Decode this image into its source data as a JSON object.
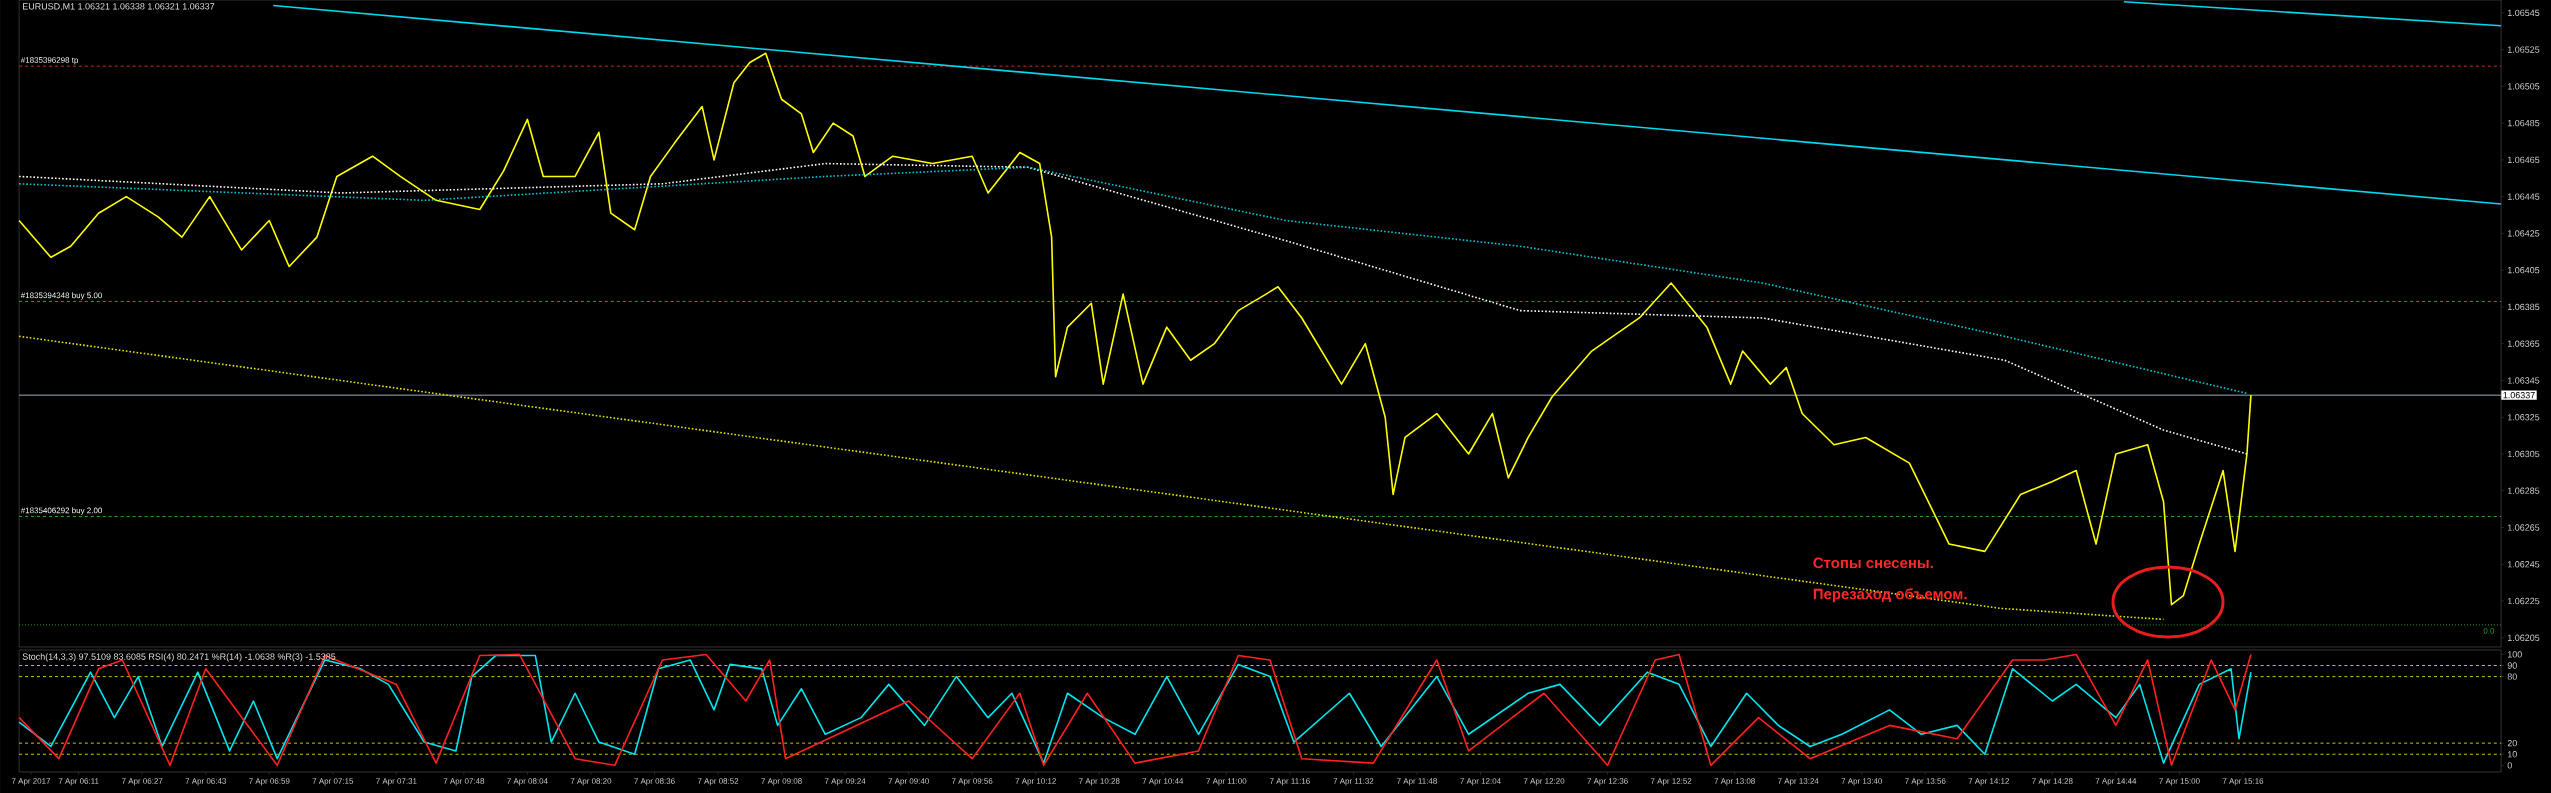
{
  "chart_data": [
    {
      "type": "line",
      "title": "EURUSD,M1  1.06321 1.06338 1.06321 1.06337",
      "xlim": [
        "2017-04-07T05:56",
        "2017-04-07T16:21"
      ],
      "ylim": [
        1.062,
        1.06552
      ],
      "yticks": [
        1.06205,
        1.06225,
        1.06245,
        1.06265,
        1.06285,
        1.06305,
        1.06325,
        1.06345,
        1.06365,
        1.06385,
        1.06405,
        1.06425,
        1.06445,
        1.06465,
        1.06485,
        1.06505,
        1.06525,
        1.06545
      ],
      "tick_labels": "y",
      "series": [
        {
          "color": "#ffff00",
          "line_style": "solid",
          "x": [
            "2017-04-07T05:56",
            "2017-04-07T06:04",
            "2017-04-07T06:09",
            "2017-04-07T06:16",
            "2017-04-07T06:23",
            "2017-04-07T06:31",
            "2017-04-07T06:37",
            "2017-04-07T06:44",
            "2017-04-07T06:52",
            "2017-04-07T06:59",
            "2017-04-07T07:04",
            "2017-04-07T07:11",
            "2017-04-07T07:16",
            "2017-04-07T07:25",
            "2017-04-07T07:32",
            "2017-04-07T07:41",
            "2017-04-07T07:52",
            "2017-04-07T07:58",
            "2017-04-07T08:04",
            "2017-04-07T08:08",
            "2017-04-07T08:16",
            "2017-04-07T08:22",
            "2017-04-07T08:25",
            "2017-04-07T08:31",
            "2017-04-07T08:35",
            "2017-04-07T08:41",
            "2017-04-07T08:48",
            "2017-04-07T08:51",
            "2017-04-07T08:56",
            "2017-04-07T09:00",
            "2017-04-07T09:04",
            "2017-04-07T09:08",
            "2017-04-07T09:13",
            "2017-04-07T09:16",
            "2017-04-07T09:21",
            "2017-04-07T09:26",
            "2017-04-07T09:29",
            "2017-04-07T09:36",
            "2017-04-07T09:46",
            "2017-04-07T09:56",
            "2017-04-07T10:00",
            "2017-04-07T10:08",
            "2017-04-07T10:13",
            "2017-04-07T10:16",
            "2017-04-07T10:17",
            "2017-04-07T10:20",
            "2017-04-07T10:26",
            "2017-04-07T10:29",
            "2017-04-07T10:34",
            "2017-04-07T10:39",
            "2017-04-07T10:45",
            "2017-04-07T10:51",
            "2017-04-07T10:57",
            "2017-04-07T11:03",
            "2017-04-07T11:10",
            "2017-04-07T11:13",
            "2017-04-07T11:19",
            "2017-04-07T11:29",
            "2017-04-07T11:35",
            "2017-04-07T11:40",
            "2017-04-07T11:42",
            "2017-04-07T11:45",
            "2017-04-07T11:53",
            "2017-04-07T12:01",
            "2017-04-07T12:07",
            "2017-04-07T12:11",
            "2017-04-07T12:16",
            "2017-04-07T12:22",
            "2017-04-07T12:32",
            "2017-04-07T12:44",
            "2017-04-07T12:52",
            "2017-04-07T13:01",
            "2017-04-07T13:07",
            "2017-04-07T13:10",
            "2017-04-07T13:17",
            "2017-04-07T13:21",
            "2017-04-07T13:25",
            "2017-04-07T13:33",
            "2017-04-07T13:41",
            "2017-04-07T13:52",
            "2017-04-07T14:02",
            "2017-04-07T14:11",
            "2017-04-07T14:20",
            "2017-04-07T14:28",
            "2017-04-07T14:34",
            "2017-04-07T14:39",
            "2017-04-07T14:44",
            "2017-04-07T14:52",
            "2017-04-07T14:56",
            "2017-04-07T14:58",
            "2017-04-07T15:01",
            "2017-04-07T15:05",
            "2017-04-07T15:11",
            "2017-04-07T15:14",
            "2017-04-07T15:17",
            "2017-04-07T15:18"
          ],
          "values": [
            1.06432,
            1.06412,
            1.06418,
            1.06436,
            1.06445,
            1.06434,
            1.06423,
            1.06445,
            1.06416,
            1.06432,
            1.06407,
            1.06423,
            1.06456,
            1.06467,
            1.06456,
            1.06443,
            1.06438,
            1.06459,
            1.06487,
            1.06456,
            1.06456,
            1.0648,
            1.06436,
            1.06427,
            1.06456,
            1.06474,
            1.06494,
            1.06465,
            1.06507,
            1.06518,
            1.06523,
            1.06498,
            1.0649,
            1.06469,
            1.06485,
            1.06478,
            1.06456,
            1.06467,
            1.06463,
            1.06467,
            1.06447,
            1.06469,
            1.06463,
            1.06423,
            1.06347,
            1.06374,
            1.06387,
            1.06343,
            1.06392,
            1.06343,
            1.06374,
            1.06356,
            1.06365,
            1.06383,
            1.06392,
            1.06396,
            1.06379,
            1.06343,
            1.06365,
            1.06325,
            1.06283,
            1.06314,
            1.06327,
            1.06305,
            1.06327,
            1.06292,
            1.06314,
            1.06336,
            1.06361,
            1.06379,
            1.06398,
            1.06374,
            1.06343,
            1.06361,
            1.06343,
            1.06352,
            1.06327,
            1.0631,
            1.06314,
            1.063,
            1.06256,
            1.06252,
            1.06283,
            1.0629,
            1.06296,
            1.06256,
            1.06305,
            1.0631,
            1.06279,
            1.06223,
            1.06228,
            1.06256,
            1.06296,
            1.06252,
            1.06305,
            1.06337
          ]
        },
        {
          "color": "#00d8f0",
          "line_style": "solid",
          "x": [
            "2017-04-07T07:00",
            "2017-04-07T16:21"
          ],
          "values": [
            1.06549,
            1.06441
          ]
        },
        {
          "color": "#00d8f0",
          "line_style": "solid",
          "x": [
            "2017-04-07T14:46",
            "2017-04-07T16:21"
          ],
          "values": [
            1.06551,
            1.06538
          ]
        },
        {
          "color": "#e6e600",
          "line_style": "dotted",
          "x": [
            "2017-04-07T05:56",
            "2017-04-07T14:15",
            "2017-04-07T14:56"
          ],
          "values": [
            1.06369,
            1.06221,
            1.06215
          ]
        },
        {
          "color": "#ffffff",
          "line_style": "dotted",
          "x": [
            "2017-04-07T05:56",
            "2017-04-07T07:17",
            "2017-04-07T08:38",
            "2017-04-07T09:19",
            "2017-04-07T10:10",
            "2017-04-07T11:15",
            "2017-04-07T12:14",
            "2017-04-07T13:15",
            "2017-04-07T14:16",
            "2017-04-07T14:56",
            "2017-04-07T15:17"
          ],
          "values": [
            1.06456,
            1.06447,
            1.06452,
            1.06463,
            1.06461,
            1.06421,
            1.06383,
            1.06379,
            1.06356,
            1.06318,
            1.06305
          ]
        },
        {
          "color": "#00c8d8",
          "line_style": "dotted",
          "x": [
            "2017-04-07T05:56",
            "2017-04-07T07:38",
            "2017-04-07T09:19",
            "2017-04-07T10:10",
            "2017-04-07T11:15",
            "2017-04-07T12:14",
            "2017-04-07T13:15",
            "2017-04-07T14:16",
            "2017-04-07T15:17"
          ],
          "values": [
            1.06452,
            1.06443,
            1.06456,
            1.06461,
            1.06432,
            1.06418,
            1.06398,
            1.06369,
            1.06338
          ]
        }
      ],
      "ref_lines": [
        {
          "axis": "y",
          "value": 1.06516,
          "label": "#1835396298 tp",
          "color": "#c8321e",
          "line_style": "dashed"
        },
        {
          "axis": "y",
          "value": 1.06388,
          "label": "#1835394348 buy 5.00",
          "color": "#2ea02e",
          "line_style": "dashed"
        },
        {
          "axis": "y",
          "value": 1.06271,
          "label": "#1835406292 buy 2.00",
          "color": "#2ea02e",
          "line_style": "dashed"
        },
        {
          "axis": "y",
          "value": 1.06337,
          "label": "1.06337",
          "color": "#a0a8b8",
          "line_style": "solid"
        },
        {
          "axis": "y",
          "value": 1.06212,
          "color": "#2ea02e",
          "line_style": "dotted"
        }
      ],
      "annotations": [
        "Стопы снесены.",
        "Перезаход объемом.",
        "0.0"
      ]
    },
    {
      "type": "line",
      "title": "Stoch(14,3,3) 97.5109 83.6085  RSI(4) 80.2471  %R(14) -1.0638  %R(3) -1.5385",
      "xlim": [
        "2017-04-07T05:56",
        "2017-04-07T16:21"
      ],
      "ylim": [
        -6,
        104
      ],
      "xticks": [
        {
          "value": "2017-04-07T05:59",
          "label": "7 Apr 2017"
        },
        {
          "value": "2017-04-07T06:11",
          "label": "7 Apr 06:11"
        },
        {
          "value": "2017-04-07T06:27",
          "label": "7 Apr 06:27"
        },
        {
          "value": "2017-04-07T06:43",
          "label": "7 Apr 06:43"
        },
        {
          "value": "2017-04-07T06:59",
          "label": "7 Apr 06:59"
        },
        {
          "value": "2017-04-07T07:15",
          "label": "7 Apr 07:15"
        },
        {
          "value": "2017-04-07T07:31",
          "label": "7 Apr 07:31"
        },
        {
          "value": "2017-04-07T07:48",
          "label": "7 Apr 07:48"
        },
        {
          "value": "2017-04-07T08:04",
          "label": "7 Apr 08:04"
        },
        {
          "value": "2017-04-07T08:20",
          "label": "7 Apr 08:20"
        },
        {
          "value": "2017-04-07T08:36",
          "label": "7 Apr 08:36"
        },
        {
          "value": "2017-04-07T08:52",
          "label": "7 Apr 08:52"
        },
        {
          "value": "2017-04-07T09:08",
          "label": "7 Apr 09:08"
        },
        {
          "value": "2017-04-07T09:24",
          "label": "7 Apr 09:24"
        },
        {
          "value": "2017-04-07T09:40",
          "label": "7 Apr 09:40"
        },
        {
          "value": "2017-04-07T09:56",
          "label": "7 Apr 09:56"
        },
        {
          "value": "2017-04-07T10:12",
          "label": "7 Apr 10:12"
        },
        {
          "value": "2017-04-07T10:28",
          "label": "7 Apr 10:28"
        },
        {
          "value": "2017-04-07T10:44",
          "label": "7 Apr 10:44"
        },
        {
          "value": "2017-04-07T11:00",
          "label": "7 Apr 11:00"
        },
        {
          "value": "2017-04-07T11:16",
          "label": "7 Apr 11:16"
        },
        {
          "value": "2017-04-07T11:32",
          "label": "7 Apr 11:32"
        },
        {
          "value": "2017-04-07T11:48",
          "label": "7 Apr 11:48"
        },
        {
          "value": "2017-04-07T12:04",
          "label": "7 Apr 12:04"
        },
        {
          "value": "2017-04-07T12:20",
          "label": "7 Apr 12:20"
        },
        {
          "value": "2017-04-07T12:36",
          "label": "7 Apr 12:36"
        },
        {
          "value": "2017-04-07T12:52",
          "label": "7 Apr 12:52"
        },
        {
          "value": "2017-04-07T13:08",
          "label": "7 Apr 13:08"
        },
        {
          "value": "2017-04-07T13:24",
          "label": "7 Apr 13:24"
        },
        {
          "value": "2017-04-07T13:40",
          "label": "7 Apr 13:40"
        },
        {
          "value": "2017-04-07T13:56",
          "label": "7 Apr 13:56"
        },
        {
          "value": "2017-04-07T14:12",
          "label": "7 Apr 14:12"
        },
        {
          "value": "2017-04-07T14:28",
          "label": "7 Apr 14:28"
        },
        {
          "value": "2017-04-07T14:44",
          "label": "7 Apr 14:44"
        },
        {
          "value": "2017-04-07T15:00",
          "label": "7 Apr 15:00"
        },
        {
          "value": "2017-04-07T15:16",
          "label": "7 Apr 15:16"
        }
      ],
      "yticks": [
        0,
        10,
        20,
        80,
        90,
        100
      ],
      "series": [
        {
          "color": "#00e5ee",
          "line_style": "solid",
          "x": [
            "2017-04-07T05:56",
            "2017-04-07T06:04",
            "2017-04-07T06:14",
            "2017-04-07T06:20",
            "2017-04-07T06:26",
            "2017-04-07T06:32",
            "2017-04-07T06:41",
            "2017-04-07T06:49",
            "2017-04-07T06:55",
            "2017-04-07T07:01",
            "2017-04-07T07:13",
            "2017-04-07T07:22",
            "2017-04-07T07:29",
            "2017-04-07T07:38",
            "2017-04-07T07:46",
            "2017-04-07T07:50",
            "2017-04-07T07:56",
            "2017-04-07T08:06",
            "2017-04-07T08:10",
            "2017-04-07T08:16",
            "2017-04-07T08:22",
            "2017-04-07T08:31",
            "2017-04-07T08:37",
            "2017-04-07T08:45",
            "2017-04-07T08:51",
            "2017-04-07T08:55",
            "2017-04-07T09:03",
            "2017-04-07T09:07",
            "2017-04-07T09:13",
            "2017-04-07T09:19",
            "2017-04-07T09:28",
            "2017-04-07T09:35",
            "2017-04-07T09:44",
            "2017-04-07T09:52",
            "2017-04-07T10:00",
            "2017-04-07T10:06",
            "2017-04-07T10:14",
            "2017-04-07T10:20",
            "2017-04-07T10:29",
            "2017-04-07T10:37",
            "2017-04-07T10:45",
            "2017-04-07T10:53",
            "2017-04-07T11:03",
            "2017-04-07T11:11",
            "2017-04-07T11:17",
            "2017-04-07T11:31",
            "2017-04-07T11:39",
            "2017-04-07T11:53",
            "2017-04-07T12:01",
            "2017-04-07T12:16",
            "2017-04-07T12:24",
            "2017-04-07T12:34",
            "2017-04-07T12:46",
            "2017-04-07T12:54",
            "2017-04-07T13:02",
            "2017-04-07T13:11",
            "2017-04-07T13:19",
            "2017-04-07T13:27",
            "2017-04-07T13:35",
            "2017-04-07T13:47",
            "2017-04-07T13:55",
            "2017-04-07T14:04",
            "2017-04-07T14:11",
            "2017-04-07T14:18",
            "2017-04-07T14:28",
            "2017-04-07T14:34",
            "2017-04-07T14:44",
            "2017-04-07T14:50",
            "2017-04-07T14:56",
            "2017-04-07T15:05",
            "2017-04-07T15:13",
            "2017-04-07T15:15",
            "2017-04-07T15:18"
          ],
          "values": [
            39,
            17,
            84,
            43,
            80,
            17,
            84,
            13,
            58,
            6,
            95,
            87,
            73,
            21,
            13,
            80,
            99,
            99,
            21,
            65,
            21,
            10,
            87,
            95,
            50,
            91,
            87,
            36,
            69,
            28,
            43,
            73,
            36,
            80,
            43,
            65,
            2,
            65,
            43,
            28,
            80,
            28,
            91,
            80,
            21,
            65,
            17,
            80,
            28,
            65,
            73,
            36,
            84,
            73,
            17,
            65,
            36,
            17,
            28,
            50,
            28,
            36,
            10,
            87,
            58,
            73,
            43,
            73,
            2,
            73,
            87,
            24,
            84
          ]
        },
        {
          "color": "#ff2020",
          "line_style": "solid",
          "x": [
            "2017-04-07T05:56",
            "2017-04-07T06:06",
            "2017-04-07T06:16",
            "2017-04-07T06:22",
            "2017-04-07T06:34",
            "2017-04-07T06:43",
            "2017-04-07T07:01",
            "2017-04-07T07:13",
            "2017-04-07T07:31",
            "2017-04-07T07:41",
            "2017-04-07T07:52",
            "2017-04-07T08:02",
            "2017-04-07T08:16",
            "2017-04-07T08:26",
            "2017-04-07T08:38",
            "2017-04-07T08:49",
            "2017-04-07T08:59",
            "2017-04-07T09:05",
            "2017-04-07T09:09",
            "2017-04-07T09:40",
            "2017-04-07T09:56",
            "2017-04-07T10:08",
            "2017-04-07T10:14",
            "2017-04-07T10:25",
            "2017-04-07T10:37",
            "2017-04-07T10:53",
            "2017-04-07T11:03",
            "2017-04-07T11:11",
            "2017-04-07T11:19",
            "2017-04-07T11:37",
            "2017-04-07T11:53",
            "2017-04-07T12:01",
            "2017-04-07T12:20",
            "2017-04-07T12:36",
            "2017-04-07T12:48",
            "2017-04-07T12:54",
            "2017-04-07T13:02",
            "2017-04-07T13:14",
            "2017-04-07T13:27",
            "2017-04-07T13:47",
            "2017-04-07T14:04",
            "2017-04-07T14:18",
            "2017-04-07T14:26",
            "2017-04-07T14:34",
            "2017-04-07T14:44",
            "2017-04-07T14:52",
            "2017-04-07T14:58",
            "2017-04-07T15:08",
            "2017-04-07T15:14",
            "2017-04-07T15:18"
          ],
          "values": [
            43,
            6,
            87,
            95,
            0,
            87,
            0,
            99,
            73,
            2,
            99,
            100,
            6,
            0,
            95,
            100,
            58,
            95,
            6,
            58,
            6,
            65,
            0,
            65,
            2,
            13,
            99,
            95,
            6,
            2,
            95,
            13,
            65,
            0,
            95,
            100,
            0,
            43,
            6,
            36,
            24,
            95,
            95,
            100,
            36,
            95,
            0,
            95,
            50,
            100
          ]
        }
      ],
      "ref_lines": [
        {
          "axis": "y",
          "value": 90,
          "color": "#c8c800",
          "line_style": "dashed"
        },
        {
          "axis": "y",
          "value": 80,
          "color": "#c8c800",
          "line_style": "dashed"
        },
        {
          "axis": "y",
          "value": 20,
          "color": "#c8c800",
          "line_style": "dashed"
        },
        {
          "axis": "y",
          "value": 10,
          "color": "#c8c800",
          "line_style": "dashed"
        }
      ]
    }
  ]
}
